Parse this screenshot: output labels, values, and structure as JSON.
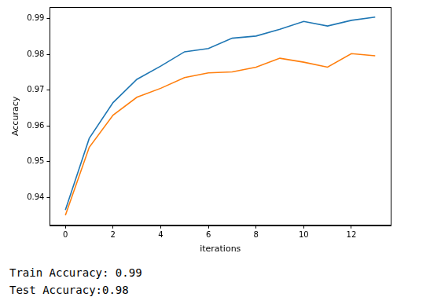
{
  "chart_data": {
    "type": "line",
    "x_label": "iterations",
    "y_label": "Accuracy",
    "x": [
      0,
      1,
      2,
      3,
      4,
      5,
      6,
      7,
      8,
      9,
      10,
      11,
      12,
      13
    ],
    "series": [
      {
        "color": "#1f77b4",
        "values": [
          0.9365,
          0.9565,
          0.9665,
          0.973,
          0.9767,
          0.9807,
          0.9816,
          0.9845,
          0.9851,
          0.987,
          0.9892,
          0.9879,
          0.9895,
          0.9904
        ]
      },
      {
        "color": "#ff7f0e",
        "values": [
          0.935,
          0.954,
          0.963,
          0.968,
          0.9705,
          0.9735,
          0.9748,
          0.9751,
          0.9764,
          0.9789,
          0.9778,
          0.9764,
          0.9802,
          0.9796
        ]
      }
    ],
    "xlim": [
      -0.65,
      13.65
    ],
    "ylim": [
      0.9322,
      0.9932
    ],
    "xticks": [
      0,
      2,
      4,
      6,
      8,
      10,
      12
    ],
    "yticks": [
      0.94,
      0.95,
      0.96,
      0.97,
      0.98,
      0.99
    ],
    "grid": false
  },
  "output": [
    "Train Accuracy: 0.99",
    "Test Accuracy:0.98"
  ]
}
